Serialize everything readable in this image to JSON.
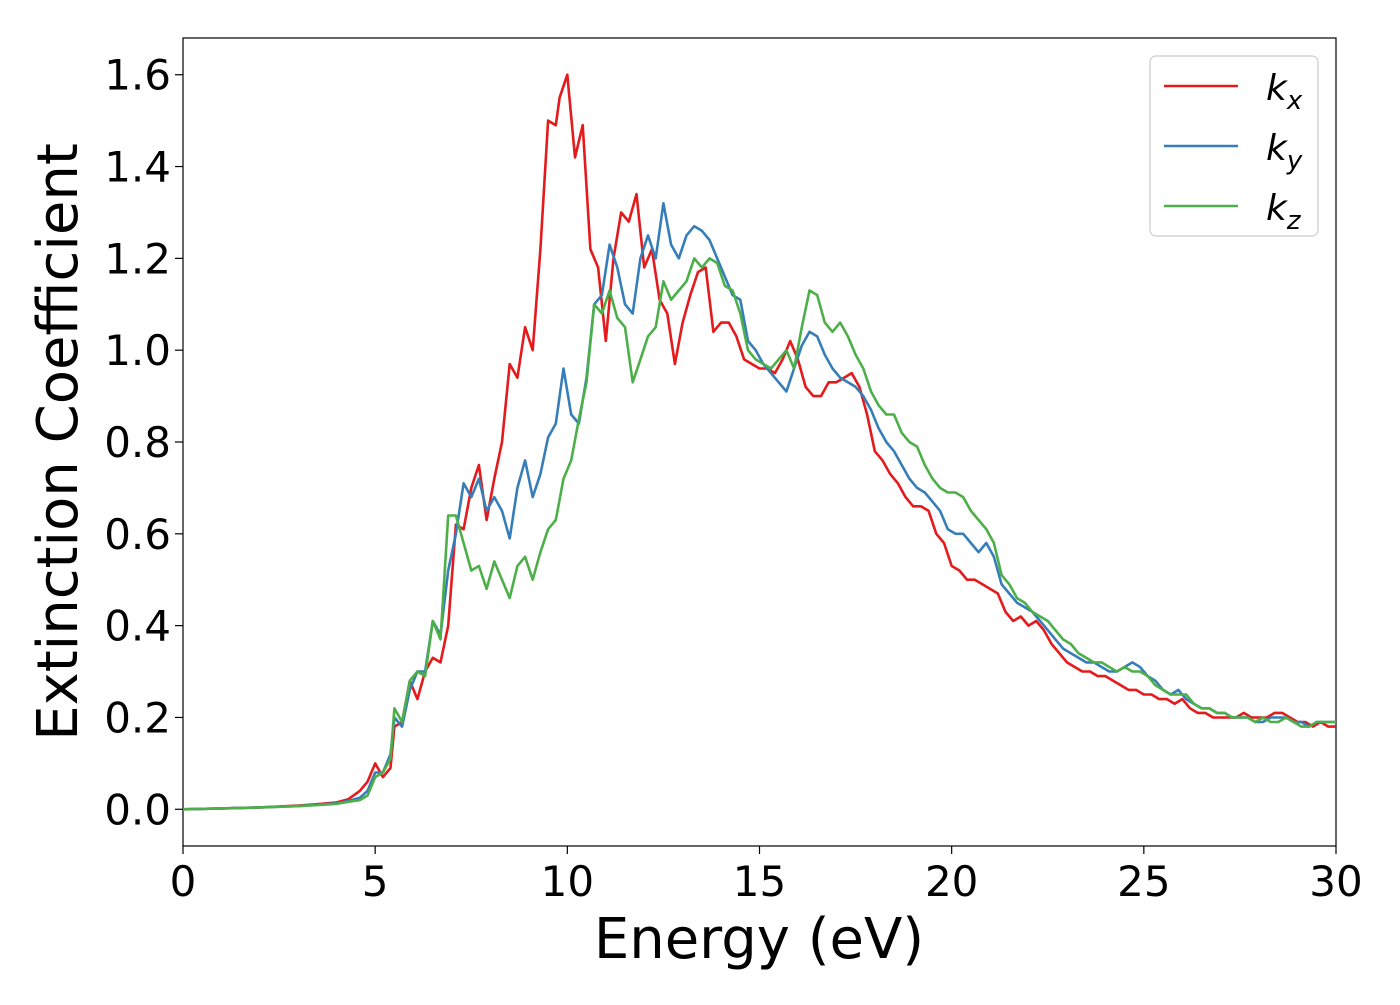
{
  "chart_data": {
    "type": "line",
    "title": "",
    "xlabel": "Energy (eV)",
    "ylabel": "Extinction Coefficient",
    "xlim": [
      0,
      30
    ],
    "ylim": [
      -0.08,
      1.68
    ],
    "xticks": [
      0,
      5,
      10,
      15,
      20,
      25,
      30
    ],
    "xtick_labels": [
      "0",
      "5",
      "10",
      "15",
      "20",
      "25",
      "30"
    ],
    "yticks": [
      0.0,
      0.2,
      0.4,
      0.6,
      0.8,
      1.0,
      1.2,
      1.4,
      1.6
    ],
    "ytick_labels": [
      "0.0",
      "0.2",
      "0.4",
      "0.6",
      "0.8",
      "1.0",
      "1.2",
      "1.4",
      "1.6"
    ],
    "grid": false,
    "legend_position": "top-right",
    "series": [
      {
        "name": "k",
        "subscript": "x",
        "color": "#e41a1c",
        "x": [
          0,
          1,
          2,
          3,
          3.5,
          4,
          4.3,
          4.6,
          4.8,
          5.0,
          5.2,
          5.4,
          5.5,
          5.7,
          5.9,
          6.1,
          6.3,
          6.5,
          6.7,
          6.9,
          7.1,
          7.3,
          7.5,
          7.7,
          7.9,
          8.1,
          8.3,
          8.5,
          8.7,
          8.9,
          9.1,
          9.3,
          9.5,
          9.7,
          9.8,
          10.0,
          10.2,
          10.4,
          10.6,
          10.8,
          11.0,
          11.2,
          11.4,
          11.6,
          11.8,
          12.0,
          12.2,
          12.4,
          12.6,
          12.8,
          13.0,
          13.2,
          13.4,
          13.6,
          13.8,
          14.0,
          14.2,
          14.4,
          14.6,
          14.8,
          15.0,
          15.2,
          15.4,
          15.6,
          15.8,
          16.0,
          16.2,
          16.4,
          16.6,
          16.8,
          17.0,
          17.2,
          17.4,
          17.6,
          17.8,
          18.0,
          18.2,
          18.4,
          18.6,
          18.8,
          19.0,
          19.2,
          19.4,
          19.6,
          19.8,
          20.0,
          20.2,
          20.4,
          20.6,
          20.8,
          21.0,
          21.2,
          21.4,
          21.6,
          21.8,
          22.0,
          22.2,
          22.4,
          22.6,
          22.8,
          23.0,
          23.2,
          23.4,
          23.6,
          23.8,
          24.0,
          24.2,
          24.4,
          24.6,
          24.8,
          25.0,
          25.2,
          25.4,
          25.6,
          25.8,
          26.0,
          26.2,
          26.4,
          26.6,
          26.8,
          27.0,
          27.2,
          27.4,
          27.6,
          27.8,
          28.0,
          28.2,
          28.4,
          28.6,
          28.8,
          29.0,
          29.2,
          29.4,
          29.6,
          29.8,
          30.0
        ],
        "y": [
          0.0,
          0.002,
          0.004,
          0.008,
          0.011,
          0.015,
          0.022,
          0.04,
          0.06,
          0.1,
          0.07,
          0.09,
          0.18,
          0.19,
          0.28,
          0.24,
          0.3,
          0.33,
          0.32,
          0.4,
          0.62,
          0.61,
          0.7,
          0.75,
          0.63,
          0.72,
          0.8,
          0.97,
          0.94,
          1.05,
          1.0,
          1.22,
          1.5,
          1.49,
          1.55,
          1.6,
          1.42,
          1.49,
          1.22,
          1.18,
          1.02,
          1.2,
          1.3,
          1.28,
          1.34,
          1.18,
          1.22,
          1.11,
          1.08,
          0.97,
          1.06,
          1.12,
          1.17,
          1.18,
          1.04,
          1.06,
          1.06,
          1.03,
          0.98,
          0.97,
          0.96,
          0.96,
          0.95,
          0.98,
          1.02,
          0.98,
          0.92,
          0.9,
          0.9,
          0.93,
          0.93,
          0.94,
          0.95,
          0.92,
          0.86,
          0.78,
          0.76,
          0.73,
          0.71,
          0.68,
          0.66,
          0.66,
          0.65,
          0.6,
          0.58,
          0.53,
          0.52,
          0.5,
          0.5,
          0.49,
          0.48,
          0.47,
          0.43,
          0.41,
          0.42,
          0.4,
          0.41,
          0.39,
          0.36,
          0.34,
          0.32,
          0.31,
          0.3,
          0.3,
          0.29,
          0.29,
          0.28,
          0.27,
          0.26,
          0.26,
          0.25,
          0.25,
          0.24,
          0.24,
          0.23,
          0.24,
          0.22,
          0.21,
          0.21,
          0.2,
          0.2,
          0.2,
          0.2,
          0.21,
          0.2,
          0.2,
          0.2,
          0.21,
          0.21,
          0.2,
          0.19,
          0.19,
          0.18,
          0.19,
          0.18,
          0.18
        ]
      },
      {
        "name": "k",
        "subscript": "y",
        "color": "#377eb8",
        "x": [
          0,
          1,
          2,
          3,
          3.5,
          4,
          4.3,
          4.6,
          4.8,
          5.0,
          5.2,
          5.4,
          5.5,
          5.7,
          5.9,
          6.1,
          6.3,
          6.5,
          6.7,
          6.9,
          7.1,
          7.3,
          7.5,
          7.7,
          7.9,
          8.1,
          8.3,
          8.5,
          8.7,
          8.9,
          9.1,
          9.3,
          9.5,
          9.7,
          9.9,
          10.1,
          10.3,
          10.5,
          10.7,
          10.9,
          11.1,
          11.3,
          11.5,
          11.7,
          11.9,
          12.1,
          12.3,
          12.5,
          12.7,
          12.9,
          13.1,
          13.3,
          13.5,
          13.7,
          13.9,
          14.1,
          14.3,
          14.5,
          14.7,
          14.9,
          15.1,
          15.3,
          15.5,
          15.7,
          15.9,
          16.1,
          16.3,
          16.5,
          16.7,
          16.9,
          17.1,
          17.3,
          17.5,
          17.7,
          17.9,
          18.1,
          18.3,
          18.5,
          18.7,
          18.9,
          19.1,
          19.3,
          19.5,
          19.7,
          19.9,
          20.1,
          20.3,
          20.5,
          20.7,
          20.9,
          21.1,
          21.3,
          21.5,
          21.7,
          21.9,
          22.1,
          22.3,
          22.5,
          22.7,
          22.9,
          23.1,
          23.3,
          23.5,
          23.7,
          23.9,
          24.1,
          24.3,
          24.5,
          24.7,
          24.9,
          25.1,
          25.3,
          25.5,
          25.7,
          25.9,
          26.1,
          26.3,
          26.5,
          26.7,
          26.9,
          27.1,
          27.3,
          27.5,
          27.7,
          27.9,
          28.1,
          28.3,
          28.5,
          28.7,
          28.9,
          29.1,
          29.3,
          29.5,
          29.7,
          30.0
        ],
        "y": [
          0.0,
          0.002,
          0.004,
          0.007,
          0.01,
          0.013,
          0.018,
          0.025,
          0.04,
          0.08,
          0.08,
          0.12,
          0.2,
          0.18,
          0.26,
          0.3,
          0.3,
          0.41,
          0.38,
          0.52,
          0.6,
          0.71,
          0.68,
          0.72,
          0.65,
          0.68,
          0.65,
          0.59,
          0.7,
          0.76,
          0.68,
          0.73,
          0.81,
          0.84,
          0.96,
          0.86,
          0.84,
          0.94,
          1.1,
          1.12,
          1.23,
          1.18,
          1.1,
          1.08,
          1.2,
          1.25,
          1.2,
          1.32,
          1.23,
          1.2,
          1.25,
          1.27,
          1.26,
          1.24,
          1.2,
          1.16,
          1.12,
          1.11,
          1.02,
          1.0,
          0.97,
          0.95,
          0.93,
          0.91,
          0.96,
          1.01,
          1.04,
          1.03,
          0.99,
          0.96,
          0.94,
          0.93,
          0.92,
          0.9,
          0.87,
          0.83,
          0.8,
          0.78,
          0.75,
          0.72,
          0.7,
          0.69,
          0.67,
          0.65,
          0.61,
          0.6,
          0.6,
          0.58,
          0.56,
          0.58,
          0.55,
          0.49,
          0.47,
          0.45,
          0.44,
          0.43,
          0.41,
          0.39,
          0.37,
          0.35,
          0.34,
          0.33,
          0.32,
          0.32,
          0.31,
          0.3,
          0.3,
          0.31,
          0.32,
          0.31,
          0.29,
          0.28,
          0.26,
          0.25,
          0.26,
          0.24,
          0.23,
          0.22,
          0.22,
          0.21,
          0.21,
          0.2,
          0.2,
          0.2,
          0.19,
          0.19,
          0.2,
          0.2,
          0.2,
          0.19,
          0.19,
          0.18,
          0.19,
          0.19,
          0.19
        ]
      },
      {
        "name": "k",
        "subscript": "z",
        "color": "#4daf4a",
        "x": [
          0,
          1,
          2,
          3,
          3.5,
          4,
          4.3,
          4.6,
          4.8,
          5.0,
          5.2,
          5.4,
          5.5,
          5.7,
          5.9,
          6.1,
          6.3,
          6.5,
          6.7,
          6.9,
          7.1,
          7.3,
          7.5,
          7.7,
          7.9,
          8.1,
          8.3,
          8.5,
          8.7,
          8.9,
          9.1,
          9.3,
          9.5,
          9.7,
          9.9,
          10.1,
          10.3,
          10.5,
          10.7,
          10.9,
          11.1,
          11.3,
          11.5,
          11.7,
          11.9,
          12.1,
          12.3,
          12.5,
          12.7,
          12.9,
          13.1,
          13.3,
          13.5,
          13.7,
          13.9,
          14.1,
          14.3,
          14.5,
          14.7,
          14.9,
          15.1,
          15.3,
          15.5,
          15.7,
          15.9,
          16.1,
          16.3,
          16.5,
          16.7,
          16.9,
          17.1,
          17.3,
          17.5,
          17.7,
          17.9,
          18.1,
          18.3,
          18.5,
          18.7,
          18.9,
          19.1,
          19.3,
          19.5,
          19.7,
          19.9,
          20.1,
          20.3,
          20.5,
          20.7,
          20.9,
          21.1,
          21.3,
          21.5,
          21.7,
          21.9,
          22.1,
          22.3,
          22.5,
          22.7,
          22.9,
          23.1,
          23.3,
          23.5,
          23.7,
          23.9,
          24.1,
          24.3,
          24.5,
          24.7,
          24.9,
          25.1,
          25.3,
          25.5,
          25.7,
          25.9,
          26.1,
          26.3,
          26.5,
          26.7,
          26.9,
          27.1,
          27.3,
          27.5,
          27.7,
          27.9,
          28.1,
          28.3,
          28.5,
          28.7,
          28.9,
          29.1,
          29.3,
          29.5,
          29.7,
          30.0
        ],
        "y": [
          0.0,
          0.002,
          0.004,
          0.007,
          0.009,
          0.012,
          0.016,
          0.02,
          0.03,
          0.07,
          0.08,
          0.11,
          0.22,
          0.19,
          0.28,
          0.3,
          0.29,
          0.41,
          0.37,
          0.64,
          0.64,
          0.58,
          0.52,
          0.53,
          0.48,
          0.54,
          0.5,
          0.46,
          0.53,
          0.55,
          0.5,
          0.56,
          0.61,
          0.63,
          0.72,
          0.76,
          0.85,
          0.93,
          1.1,
          1.08,
          1.13,
          1.07,
          1.05,
          0.93,
          0.98,
          1.03,
          1.05,
          1.15,
          1.11,
          1.13,
          1.15,
          1.2,
          1.18,
          1.2,
          1.19,
          1.14,
          1.13,
          1.08,
          1.0,
          0.98,
          0.97,
          0.96,
          0.98,
          1.0,
          0.96,
          1.05,
          1.13,
          1.12,
          1.06,
          1.04,
          1.06,
          1.03,
          0.99,
          0.96,
          0.91,
          0.88,
          0.86,
          0.86,
          0.82,
          0.8,
          0.79,
          0.75,
          0.72,
          0.7,
          0.69,
          0.69,
          0.68,
          0.65,
          0.63,
          0.61,
          0.58,
          0.51,
          0.49,
          0.46,
          0.45,
          0.43,
          0.42,
          0.41,
          0.39,
          0.37,
          0.36,
          0.34,
          0.33,
          0.32,
          0.32,
          0.31,
          0.3,
          0.31,
          0.3,
          0.3,
          0.29,
          0.27,
          0.26,
          0.25,
          0.25,
          0.25,
          0.23,
          0.22,
          0.22,
          0.21,
          0.21,
          0.2,
          0.2,
          0.2,
          0.19,
          0.2,
          0.19,
          0.19,
          0.2,
          0.19,
          0.18,
          0.18,
          0.19,
          0.19,
          0.19
        ]
      }
    ]
  }
}
